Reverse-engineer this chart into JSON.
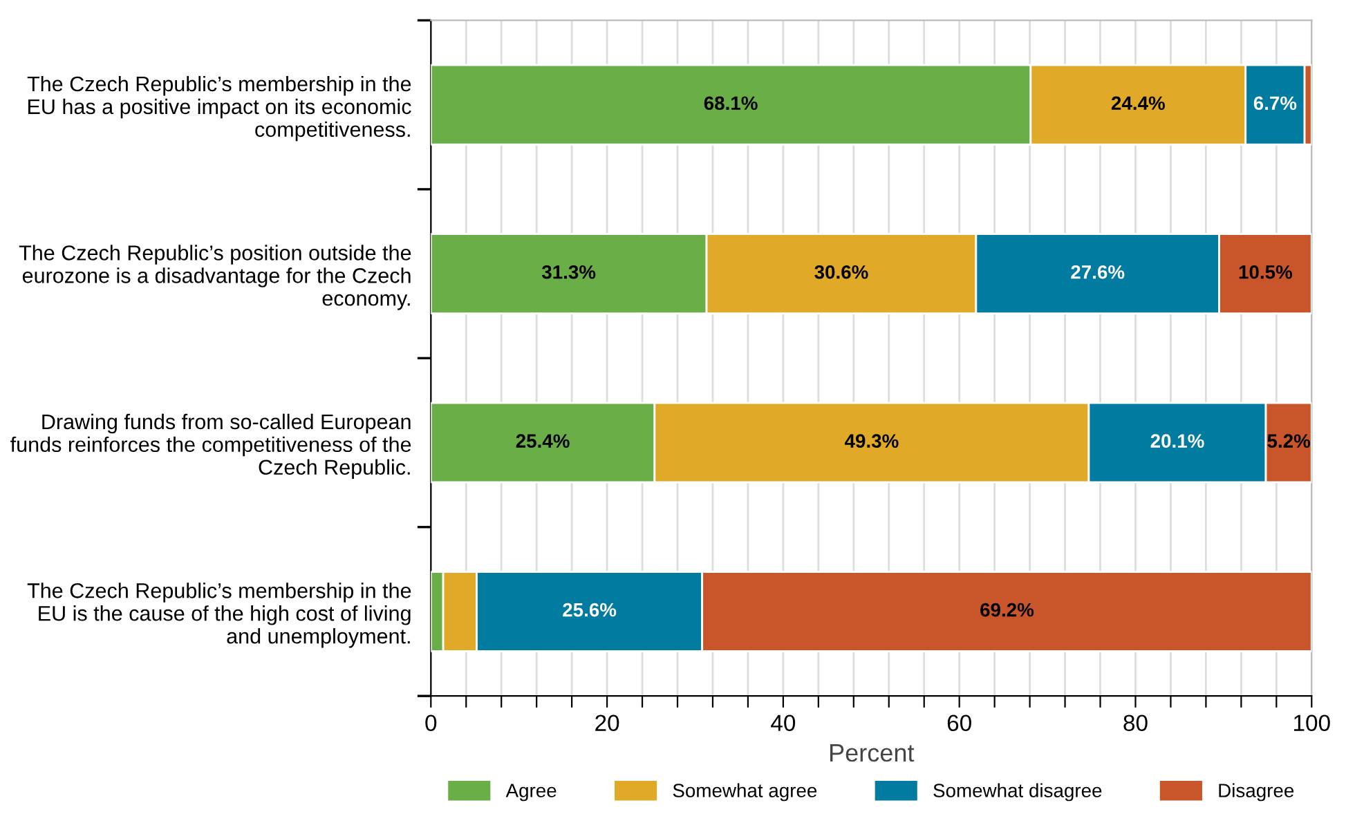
{
  "chart_data": {
    "type": "bar",
    "orientation": "horizontal",
    "stacked": true,
    "xlabel": "Percent",
    "categories": [
      "The Czech Republic’s membership in the EU has a positive impact on its economic competitiveness.",
      "The Czech Republic’s position outside the eurozone is a disadvantage for the Czech economy.",
      "Drawing funds from so-called European funds reinforces the competitiveness of the Czech Republic.",
      "The Czech Republic’s membership in the EU is the cause of the high cost of living and unemployment."
    ],
    "series": [
      {
        "name": "Agree",
        "color": "#6aae48",
        "values": [
          68.1,
          31.3,
          25.4,
          1.4
        ],
        "value_labels": [
          "68.1%",
          "31.3%",
          "25.4%",
          null
        ]
      },
      {
        "name": "Somewhat agree",
        "color": "#e0a928",
        "values": [
          24.4,
          30.6,
          49.3,
          3.8
        ],
        "value_labels": [
          "24.4%",
          "30.6%",
          "49.3%",
          null
        ]
      },
      {
        "name": "Somewhat disagree",
        "color": "#017ba0",
        "values": [
          6.7,
          27.6,
          20.1,
          25.6
        ],
        "value_labels": [
          "6.7%",
          "27.6%",
          "20.1%",
          "25.6%"
        ]
      },
      {
        "name": "Disagree",
        "color": "#c8562a",
        "values": [
          0.8,
          10.5,
          5.2,
          69.2
        ],
        "value_labels": [
          null,
          "10.5%",
          "5.2%",
          "69.2%"
        ]
      }
    ],
    "xlim": [
      0,
      100
    ],
    "xticks": [
      0,
      {
        "value": 4,
        "label": null
      },
      {
        "value": 8,
        "label": null
      },
      {
        "value": 12,
        "label": null
      },
      {
        "value": 16,
        "label": null
      },
      20,
      {
        "value": 24,
        "label": null
      },
      {
        "value": 28,
        "label": null
      },
      {
        "value": 32,
        "label": null
      },
      {
        "value": 36,
        "label": null
      },
      40,
      {
        "value": 44,
        "label": null
      },
      {
        "value": 48,
        "label": null
      },
      {
        "value": 52,
        "label": null
      },
      {
        "value": 56,
        "label": null
      },
      60,
      {
        "value": 64,
        "label": null
      },
      {
        "value": 68,
        "label": null
      },
      {
        "value": 72,
        "label": null
      },
      {
        "value": 76,
        "label": null
      },
      80,
      {
        "value": 84,
        "label": null
      },
      {
        "value": 88,
        "label": null
      },
      {
        "value": 92,
        "label": null
      },
      {
        "value": 96,
        "label": null
      },
      100
    ],
    "grid": "x",
    "legend": "bottom"
  }
}
